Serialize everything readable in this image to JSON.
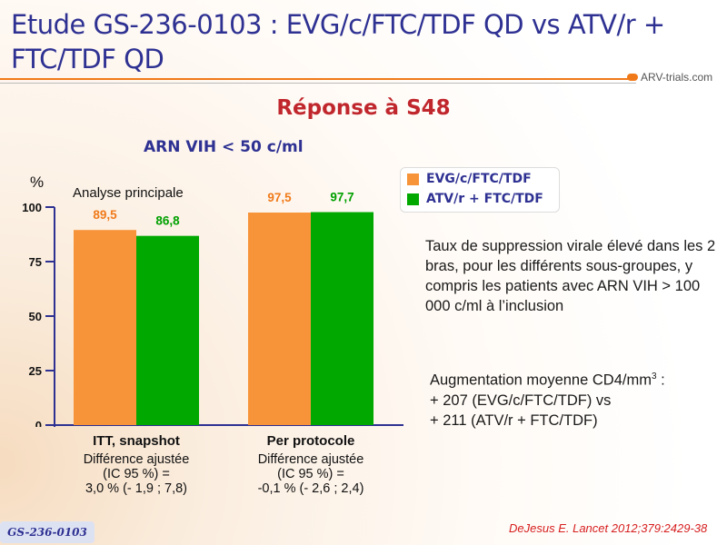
{
  "title": "Etude GS-236-0103 : EVG/c/FTC/TDF QD vs ATV/r + FTC/TDF QD",
  "logo": "ARV-trials.com",
  "subtitle": "Réponse à S48",
  "chart_heading": "ARN VIH < 50 c/ml",
  "badge": "GS-236-0103",
  "citation": "DeJesus E. Lancet 2012;379:2429-38",
  "note1": "Taux de suppression virale élevé dans les 2 bras, pour les différents sous-groupes, y compris les patients avec ARN VIH > 100 000 c/ml à l’inclusion",
  "note2": {
    "line1": "Augmentation moyenne CD4/mm",
    "sup": "3",
    "line1_end": " :",
    "line2": "+ 207 (EVG/c/FTC/TDF) vs",
    "line3": "+ 211 (ATV/r + FTC/TDF)"
  },
  "chart_data": {
    "type": "bar",
    "ylabel": "%",
    "annotation": "Analyse principale",
    "ylim": [
      0,
      100
    ],
    "yticks": [
      "0",
      "25",
      "50",
      "75",
      "100"
    ],
    "categories": [
      "ITT, snapshot",
      "Per protocole"
    ],
    "category_notes": [
      [
        "Différence ajustée",
        "(IC 95 %) =",
        "3,0 % (- 1,9 ; 7,8)"
      ],
      [
        "Différence ajustée",
        "(IC 95 %) =",
        "-0,1 % (- 2,6 ; 2,4)"
      ]
    ],
    "series": [
      {
        "name": "EVG/c/FTC/TDF",
        "values": [
          89.5,
          97.5
        ],
        "labels": [
          "89,5",
          "97,5"
        ],
        "color": "#f7943a",
        "label_color": "#f07a1a"
      },
      {
        "name": "ATV/r + FTC/TDF",
        "values": [
          86.8,
          97.7
        ],
        "labels": [
          "86,8",
          "97,7"
        ],
        "color": "#00a800",
        "label_color": "#00a000"
      }
    ],
    "legend": "top-right",
    "grid": false
  }
}
